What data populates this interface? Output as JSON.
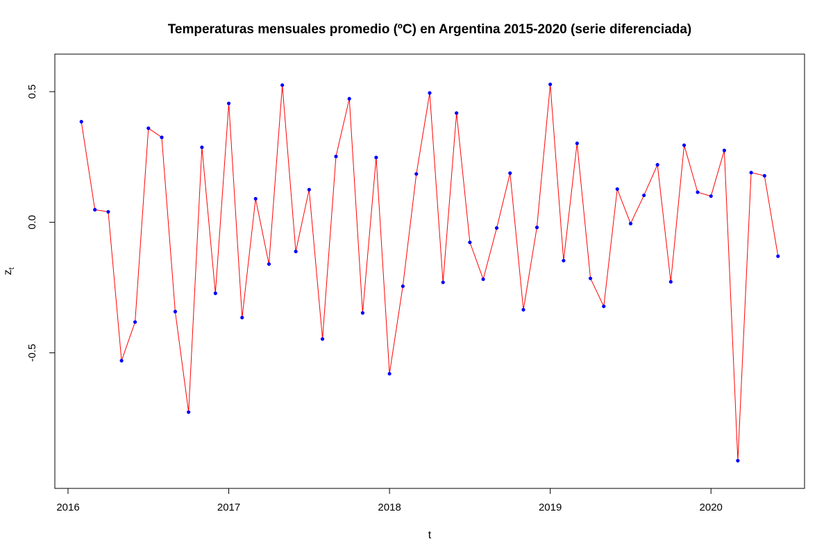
{
  "chart_data": {
    "type": "line",
    "title": "Temperaturas mensuales promedio (ºC) en Argentina 2015-2020 (serie diferenciada)",
    "xlabel": "t",
    "ylabel": "z",
    "ylabel_subscript": "t",
    "xlim": [
      2016.0,
      2020.5
    ],
    "ylim": [
      -0.95,
      0.58
    ],
    "x_ticks": [
      2016,
      2017,
      2018,
      2019,
      2020
    ],
    "x_tick_labels": [
      "2016",
      "2017",
      "2018",
      "2019",
      "2020"
    ],
    "y_ticks": [
      -0.5,
      0.0,
      0.5
    ],
    "y_tick_labels": [
      "-0.5",
      "0.0",
      "0.5"
    ],
    "grid": false,
    "line_color": "#ff0000",
    "point_color": "#0000ff",
    "series": [
      {
        "x": [
          2016.083,
          2016.167,
          2016.25,
          2016.333,
          2016.417,
          2016.5,
          2016.583,
          2016.667,
          2016.75,
          2016.833,
          2016.917,
          2017.0,
          2017.083,
          2017.167,
          2017.25,
          2017.333,
          2017.417,
          2017.5,
          2017.583,
          2017.667,
          2017.75,
          2017.833,
          2017.917,
          2018.0,
          2018.083,
          2018.167,
          2018.25,
          2018.333,
          2018.417,
          2018.5,
          2018.583,
          2018.667,
          2018.75,
          2018.833,
          2018.917,
          2019.0,
          2019.083,
          2019.167,
          2019.25,
          2019.333,
          2019.417,
          2019.5,
          2019.583,
          2019.667,
          2019.75,
          2019.833,
          2019.917,
          2020.0,
          2020.083,
          2020.167,
          2020.25,
          2020.333,
          2020.417
        ],
        "values": [
          0.385,
          0.048,
          0.04,
          -0.53,
          -0.382,
          0.36,
          0.325,
          -0.342,
          -0.727,
          0.287,
          -0.272,
          0.455,
          -0.365,
          0.09,
          -0.16,
          0.525,
          -0.112,
          0.125,
          -0.447,
          0.252,
          0.473,
          -0.347,
          0.248,
          -0.58,
          -0.245,
          0.185,
          0.495,
          -0.23,
          0.418,
          -0.077,
          -0.218,
          -0.022,
          0.188,
          -0.335,
          -0.02,
          0.528,
          -0.147,
          0.302,
          -0.215,
          -0.322,
          0.127,
          -0.005,
          0.103,
          0.22,
          -0.228,
          0.295,
          0.115,
          0.1,
          0.275,
          -0.913,
          0.19,
          0.178,
          -0.13
        ]
      }
    ]
  }
}
